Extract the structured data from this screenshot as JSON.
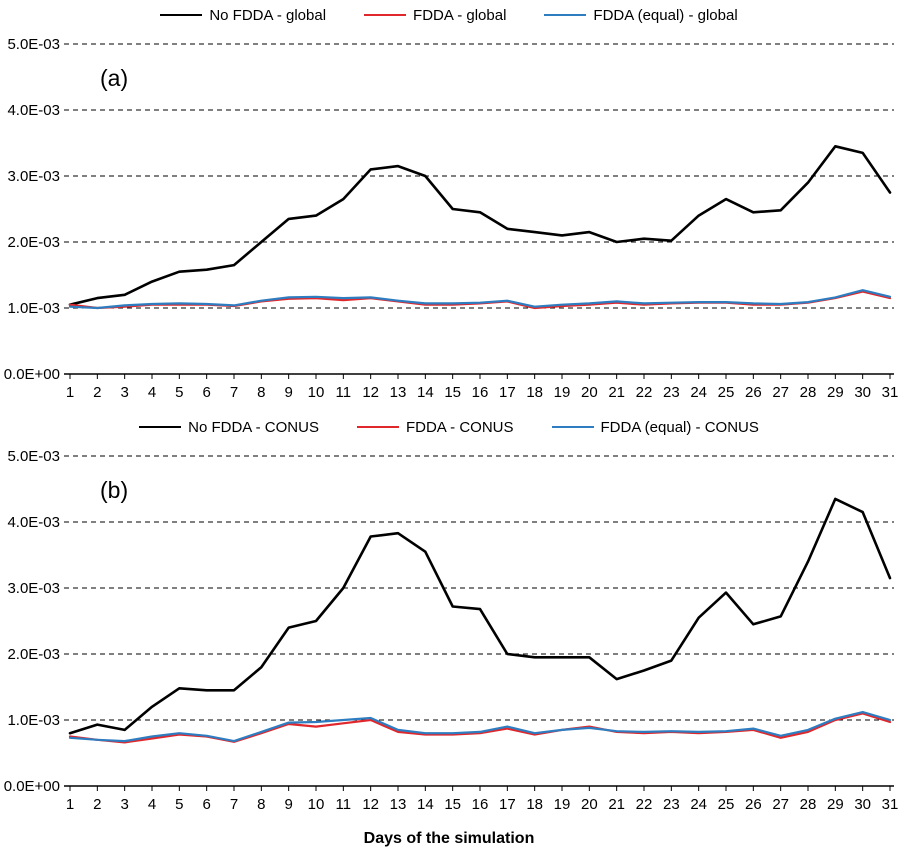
{
  "xlabel": "Days of the simulation",
  "colors": {
    "no_fdda": "#000000",
    "fdda": "#e0282c",
    "fdda_equal": "#2e7dc0"
  },
  "y_tick_labels": [
    "0.0E+00",
    "1.0E-03",
    "2.0E-03",
    "3.0E-03",
    "4.0E-03",
    "5.0E-03"
  ],
  "chart_data": [
    {
      "type": "line",
      "panel_label": "(a)",
      "x": [
        1,
        2,
        3,
        4,
        5,
        6,
        7,
        8,
        9,
        10,
        11,
        12,
        13,
        14,
        15,
        16,
        17,
        18,
        19,
        20,
        21,
        22,
        23,
        24,
        25,
        26,
        27,
        28,
        29,
        30,
        31
      ],
      "ylim": [
        0,
        0.005
      ],
      "y_ticks": [
        {
          "value": 0.0,
          "label": "0.0E+00"
        },
        {
          "value": 0.001,
          "label": "1.0E-03"
        },
        {
          "value": 0.002,
          "label": "2.0E-03"
        },
        {
          "value": 0.003,
          "label": "3.0E-03"
        },
        {
          "value": 0.004,
          "label": "4.0E-03"
        },
        {
          "value": 0.005,
          "label": "5.0E-03"
        }
      ],
      "series": [
        {
          "name": "No FDDA - global",
          "color": "no_fdda",
          "width": 2.6,
          "values": [
            0.00105,
            0.00115,
            0.0012,
            0.0014,
            0.00155,
            0.00158,
            0.00165,
            0.002,
            0.00235,
            0.0024,
            0.00265,
            0.0031,
            0.00315,
            0.003,
            0.0025,
            0.00245,
            0.0022,
            0.00215,
            0.0021,
            0.00215,
            0.002,
            0.00205,
            0.00202,
            0.0024,
            0.00265,
            0.00245,
            0.00248,
            0.0029,
            0.00345,
            0.00335,
            0.00275
          ]
        },
        {
          "name": "FDDA -  global",
          "color": "fdda",
          "width": 2.2,
          "values": [
            0.00105,
            0.001,
            0.00102,
            0.00105,
            0.00105,
            0.00105,
            0.00103,
            0.0011,
            0.00114,
            0.00115,
            0.00112,
            0.00115,
            0.0011,
            0.00105,
            0.00105,
            0.00107,
            0.0011,
            0.001,
            0.00103,
            0.00105,
            0.00108,
            0.00105,
            0.00107,
            0.00108,
            0.00108,
            0.00105,
            0.00105,
            0.00108,
            0.00115,
            0.00125,
            0.00115
          ]
        },
        {
          "name": "FDDA (equal) -  global",
          "color": "fdda_equal",
          "width": 2.2,
          "values": [
            0.00102,
            0.001,
            0.00104,
            0.00106,
            0.00107,
            0.00106,
            0.00104,
            0.00111,
            0.00116,
            0.00117,
            0.00115,
            0.00116,
            0.00111,
            0.00107,
            0.00107,
            0.00108,
            0.00111,
            0.00102,
            0.00105,
            0.00107,
            0.0011,
            0.00107,
            0.00108,
            0.00109,
            0.00109,
            0.00107,
            0.00106,
            0.00109,
            0.00116,
            0.00127,
            0.00117
          ]
        }
      ]
    },
    {
      "type": "line",
      "panel_label": "(b)",
      "x": [
        1,
        2,
        3,
        4,
        5,
        6,
        7,
        8,
        9,
        10,
        11,
        12,
        13,
        14,
        15,
        16,
        17,
        18,
        19,
        20,
        21,
        22,
        23,
        24,
        25,
        26,
        27,
        28,
        29,
        30,
        31
      ],
      "ylim": [
        0,
        0.005
      ],
      "y_ticks": [
        {
          "value": 0.0,
          "label": "0.0E+00"
        },
        {
          "value": 0.001,
          "label": "1.0E-03"
        },
        {
          "value": 0.002,
          "label": "2.0E-03"
        },
        {
          "value": 0.003,
          "label": "3.0E-03"
        },
        {
          "value": 0.004,
          "label": "4.0E-03"
        },
        {
          "value": 0.005,
          "label": "5.0E-03"
        }
      ],
      "series": [
        {
          "name": "No FDDA - CONUS",
          "color": "no_fdda",
          "width": 2.6,
          "values": [
            0.0008,
            0.00093,
            0.00085,
            0.0012,
            0.00148,
            0.00145,
            0.00145,
            0.0018,
            0.0024,
            0.0025,
            0.003,
            0.00378,
            0.00383,
            0.00355,
            0.00272,
            0.00268,
            0.002,
            0.00195,
            0.00195,
            0.00195,
            0.00162,
            0.00175,
            0.0019,
            0.00255,
            0.00293,
            0.00245,
            0.00257,
            0.0034,
            0.00435,
            0.00415,
            0.00315
          ]
        },
        {
          "name": "FDDA - CONUS",
          "color": "fdda",
          "width": 2.2,
          "values": [
            0.00075,
            0.0007,
            0.00066,
            0.00072,
            0.00078,
            0.00075,
            0.00067,
            0.0008,
            0.00094,
            0.0009,
            0.00095,
            0.001,
            0.00082,
            0.00078,
            0.00078,
            0.0008,
            0.00087,
            0.00078,
            0.00085,
            0.0009,
            0.00082,
            0.0008,
            0.00082,
            0.0008,
            0.00082,
            0.00085,
            0.00073,
            0.00082,
            0.001,
            0.0011,
            0.00097
          ]
        },
        {
          "name": "FDDA (equal) - CONUS",
          "color": "fdda_equal",
          "width": 2.2,
          "values": [
            0.00073,
            0.0007,
            0.00068,
            0.00075,
            0.0008,
            0.00076,
            0.00068,
            0.00082,
            0.00096,
            0.00097,
            0.001,
            0.00103,
            0.00085,
            0.0008,
            0.0008,
            0.00082,
            0.0009,
            0.0008,
            0.00085,
            0.00088,
            0.00083,
            0.00082,
            0.00083,
            0.00082,
            0.00083,
            0.00087,
            0.00076,
            0.00085,
            0.00102,
            0.00112,
            0.001
          ]
        }
      ]
    }
  ]
}
